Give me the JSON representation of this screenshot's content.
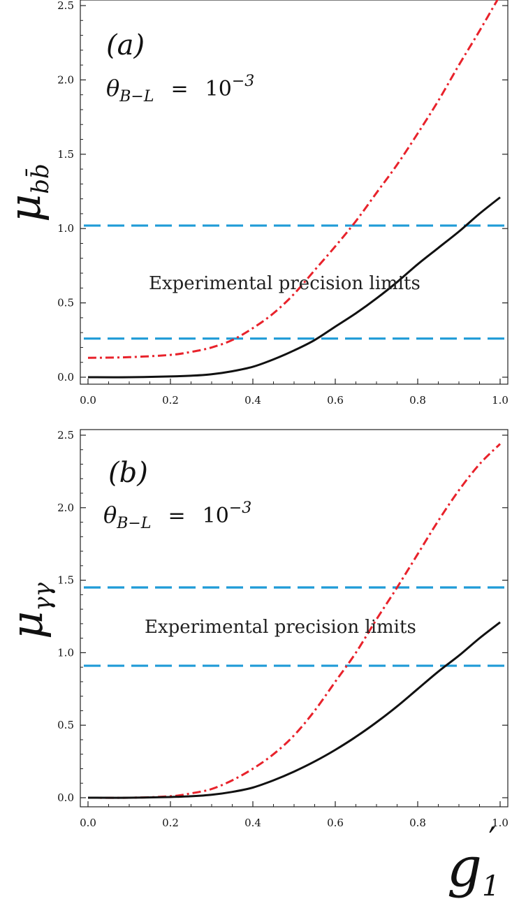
{
  "figure": {
    "xlabel_main": "g",
    "xlabel_sub": "1",
    "xlabel_prime": "′"
  },
  "chart_data": [
    {
      "type": "line",
      "panel_label": "(a)",
      "annotation_theta": "θ",
      "annotation_theta_sub": "B−L",
      "annotation_eq": "=",
      "annotation_value_base": "10",
      "annotation_value_exp": "−3",
      "note": "Experimental precision limits",
      "ylabel_main": "μ",
      "ylabel_sub": "bb̄",
      "xlim": [
        0,
        1
      ],
      "ylim": [
        0,
        2.5
      ],
      "xticks": [
        "0.0",
        "0.2",
        "0.4",
        "0.6",
        "0.8",
        "1.0"
      ],
      "yticks": [
        "0.0",
        "0.5",
        "1.0",
        "1.5",
        "2.0",
        "2.5"
      ],
      "hlines": [
        1.02,
        0.26
      ],
      "hline_color": "#1f9bd7",
      "series": [
        {
          "color": "#e8222b",
          "dash": "dashdot",
          "x": [
            0,
            0.1,
            0.2,
            0.25,
            0.3,
            0.35,
            0.4,
            0.45,
            0.5,
            0.55,
            0.6,
            0.65,
            0.7,
            0.75,
            0.8,
            0.85,
            0.9,
            0.95,
            1.0
          ],
          "y": [
            0.13,
            0.135,
            0.15,
            0.17,
            0.2,
            0.25,
            0.33,
            0.43,
            0.56,
            0.72,
            0.88,
            1.05,
            1.24,
            1.43,
            1.64,
            1.86,
            2.1,
            2.33,
            2.57
          ]
        },
        {
          "color": "#111111",
          "dash": "solid",
          "x": [
            0,
            0.1,
            0.2,
            0.25,
            0.3,
            0.35,
            0.4,
            0.45,
            0.5,
            0.55,
            0.6,
            0.65,
            0.7,
            0.75,
            0.8,
            0.85,
            0.9,
            0.95,
            1.0
          ],
          "y": [
            0.0,
            0.0,
            0.005,
            0.01,
            0.02,
            0.04,
            0.07,
            0.12,
            0.18,
            0.25,
            0.34,
            0.43,
            0.53,
            0.64,
            0.76,
            0.87,
            0.98,
            1.1,
            1.21
          ]
        }
      ]
    },
    {
      "type": "line",
      "panel_label": "(b)",
      "annotation_theta": "θ",
      "annotation_theta_sub": "B−L",
      "annotation_eq": "=",
      "annotation_value_base": "10",
      "annotation_value_exp": "−3",
      "note": "Experimental precision limits",
      "ylabel_main": "μ",
      "ylabel_sub": "γγ",
      "xlim": [
        0,
        1
      ],
      "ylim": [
        0,
        2.5
      ],
      "xticks": [
        "0.0",
        "0.2",
        "0.4",
        "0.6",
        "0.8",
        "1.0"
      ],
      "yticks": [
        "0.0",
        "0.5",
        "1.0",
        "1.5",
        "2.0",
        "2.5"
      ],
      "hlines": [
        1.45,
        0.91
      ],
      "hline_color": "#1f9bd7",
      "series": [
        {
          "color": "#e8222b",
          "dash": "dashdot",
          "x": [
            0,
            0.1,
            0.2,
            0.25,
            0.3,
            0.35,
            0.4,
            0.45,
            0.5,
            0.55,
            0.6,
            0.65,
            0.7,
            0.75,
            0.8,
            0.85,
            0.9,
            0.95,
            1.0
          ],
          "y": [
            0.0,
            0.0,
            0.01,
            0.03,
            0.06,
            0.12,
            0.2,
            0.3,
            0.43,
            0.6,
            0.8,
            1.0,
            1.23,
            1.45,
            1.68,
            1.91,
            2.12,
            2.3,
            2.44
          ]
        },
        {
          "color": "#111111",
          "dash": "solid",
          "x": [
            0,
            0.1,
            0.2,
            0.25,
            0.3,
            0.35,
            0.4,
            0.45,
            0.5,
            0.55,
            0.6,
            0.65,
            0.7,
            0.75,
            0.8,
            0.85,
            0.9,
            0.95,
            1.0
          ],
          "y": [
            0.0,
            0.0,
            0.005,
            0.01,
            0.02,
            0.04,
            0.07,
            0.12,
            0.18,
            0.25,
            0.33,
            0.42,
            0.52,
            0.63,
            0.75,
            0.87,
            0.98,
            1.1,
            1.21
          ]
        }
      ]
    }
  ]
}
